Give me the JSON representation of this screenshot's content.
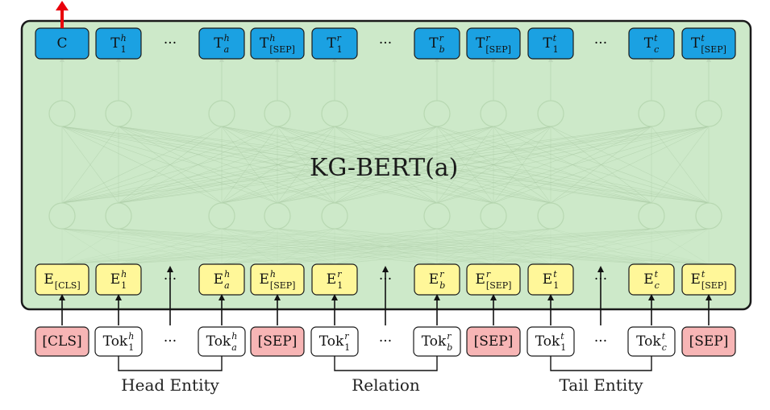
{
  "model_title": "KG-BERT(a)",
  "columns": [
    {
      "top": {
        "base": "C",
        "sup": "",
        "sub": ""
      },
      "emb": {
        "base": "E",
        "sup": "",
        "sub": "[CLS]"
      },
      "tok": {
        "base": "[CLS]",
        "sup": "",
        "sub": "",
        "kind": "special"
      }
    },
    {
      "top": {
        "base": "T",
        "sup": "h",
        "sub": "1"
      },
      "emb": {
        "base": "E",
        "sup": "h",
        "sub": "1"
      },
      "tok": {
        "base": "Tok",
        "sup": "h",
        "sub": "1",
        "kind": "token"
      }
    },
    {
      "top": {
        "base": "···",
        "sup": "",
        "sub": ""
      },
      "emb": {
        "base": "···",
        "sup": "",
        "sub": ""
      },
      "tok": {
        "base": "···",
        "sup": "",
        "sub": "",
        "kind": "ellipsis"
      }
    },
    {
      "top": {
        "base": "T",
        "sup": "h",
        "sub": "a"
      },
      "emb": {
        "base": "E",
        "sup": "h",
        "sub": "a"
      },
      "tok": {
        "base": "Tok",
        "sup": "h",
        "sub": "a",
        "kind": "token"
      }
    },
    {
      "top": {
        "base": "T",
        "sup": "h",
        "sub": "[SEP]"
      },
      "emb": {
        "base": "E",
        "sup": "h",
        "sub": "[SEP]"
      },
      "tok": {
        "base": "[SEP]",
        "sup": "",
        "sub": "",
        "kind": "special"
      }
    },
    {
      "top": {
        "base": "T",
        "sup": "r",
        "sub": "1"
      },
      "emb": {
        "base": "E",
        "sup": "r",
        "sub": "1"
      },
      "tok": {
        "base": "Tok",
        "sup": "r",
        "sub": "1",
        "kind": "token"
      }
    },
    {
      "top": {
        "base": "···",
        "sup": "",
        "sub": ""
      },
      "emb": {
        "base": "···",
        "sup": "",
        "sub": ""
      },
      "tok": {
        "base": "···",
        "sup": "",
        "sub": "",
        "kind": "ellipsis"
      }
    },
    {
      "top": {
        "base": "T",
        "sup": "r",
        "sub": "b"
      },
      "emb": {
        "base": "E",
        "sup": "r",
        "sub": "b"
      },
      "tok": {
        "base": "Tok",
        "sup": "r",
        "sub": "b",
        "kind": "token"
      }
    },
    {
      "top": {
        "base": "T",
        "sup": "r",
        "sub": "[SEP]"
      },
      "emb": {
        "base": "E",
        "sup": "r",
        "sub": "[SEP]"
      },
      "tok": {
        "base": "[SEP]",
        "sup": "",
        "sub": "",
        "kind": "special"
      }
    },
    {
      "top": {
        "base": "T",
        "sup": "t",
        "sub": "1"
      },
      "emb": {
        "base": "E",
        "sup": "t",
        "sub": "1"
      },
      "tok": {
        "base": "Tok",
        "sup": "t",
        "sub": "1",
        "kind": "token"
      }
    },
    {
      "top": {
        "base": "···",
        "sup": "",
        "sub": ""
      },
      "emb": {
        "base": "···",
        "sup": "",
        "sub": ""
      },
      "tok": {
        "base": "···",
        "sup": "",
        "sub": "",
        "kind": "ellipsis"
      }
    },
    {
      "top": {
        "base": "T",
        "sup": "t",
        "sub": "c"
      },
      "emb": {
        "base": "E",
        "sup": "t",
        "sub": "c"
      },
      "tok": {
        "base": "Tok",
        "sup": "t",
        "sub": "c",
        "kind": "token"
      }
    },
    {
      "top": {
        "base": "T",
        "sup": "t",
        "sub": "[SEP]"
      },
      "emb": {
        "base": "E",
        "sup": "t",
        "sub": "[SEP]"
      },
      "tok": {
        "base": "[SEP]",
        "sup": "",
        "sub": "",
        "kind": "special"
      }
    }
  ],
  "groups": [
    {
      "label": "Head Entity",
      "from": 1,
      "to": 3
    },
    {
      "label": "Relation",
      "from": 5,
      "to": 7
    },
    {
      "label": "Tail Entity",
      "from": 9,
      "to": 11
    }
  ],
  "colors": {
    "panel_fill": "#cde9c9",
    "panel_stroke": "#1a1a1a",
    "output_box": "#1ba1e2",
    "embedding_box": "#fff799",
    "special_token_box": "#f7b5b5",
    "token_box": "#ffffff",
    "output_arrow": "#e8000b",
    "hidden_node": "#b8d8b2",
    "connection": "#a9c9a3"
  }
}
